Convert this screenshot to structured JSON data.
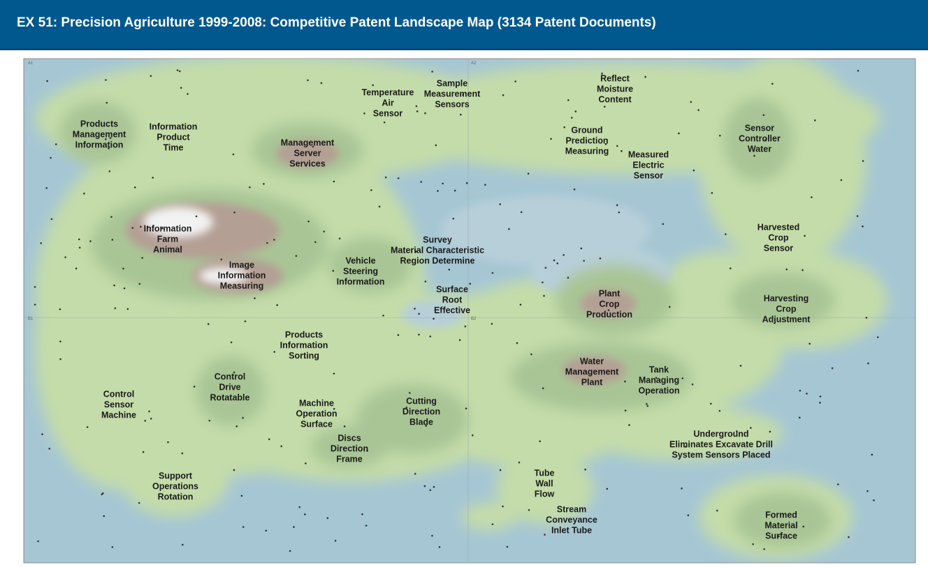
{
  "header": {
    "title": "EX 51: Precision Agriculture 1999-2008: Competitive Patent Landscape Map (3134 Patent Documents)"
  },
  "map": {
    "quadrants": [
      "A1",
      "A2",
      "B1",
      "B2"
    ],
    "clusters": [
      {
        "lines": [
          "Products",
          "Management",
          "Information"
        ]
      },
      {
        "lines": [
          "Information",
          "Product",
          "Time"
        ]
      },
      {
        "lines": [
          "Management",
          "Server",
          "Services"
        ]
      },
      {
        "lines": [
          "Temperature",
          "Air",
          "Sensor"
        ]
      },
      {
        "lines": [
          "Sample",
          "Measurement",
          "Sensors"
        ]
      },
      {
        "lines": [
          "Reflect",
          "Moisture",
          "Content"
        ]
      },
      {
        "lines": [
          "Ground",
          "Prediction",
          "Measuring"
        ]
      },
      {
        "lines": [
          "Measured",
          "Electric",
          "Sensor"
        ]
      },
      {
        "lines": [
          "Sensor",
          "Controller",
          "Water"
        ]
      },
      {
        "lines": [
          "Information",
          "Farm",
          "Animal"
        ]
      },
      {
        "lines": [
          "Image",
          "Information",
          "Measuring"
        ]
      },
      {
        "lines": [
          "Vehicle",
          "Steering",
          "Information"
        ]
      },
      {
        "lines": [
          "Survey",
          "Material Characteristic",
          "Region Determine"
        ]
      },
      {
        "lines": [
          "Surface",
          "Root",
          "Effective"
        ]
      },
      {
        "lines": [
          "Harvested",
          "Crop",
          "Sensor"
        ]
      },
      {
        "lines": [
          "Plant",
          "Crop",
          "Production"
        ]
      },
      {
        "lines": [
          "Harvesting",
          "Crop",
          "Adjustment"
        ]
      },
      {
        "lines": [
          "Products",
          "Information",
          "Sorting"
        ]
      },
      {
        "lines": [
          "Control",
          "Drive",
          "Rotatable"
        ]
      },
      {
        "lines": [
          "Control",
          "Sensor",
          "Machine"
        ]
      },
      {
        "lines": [
          "Machine",
          "Operation",
          "Surface"
        ]
      },
      {
        "lines": [
          "Cutting",
          "Direction",
          "Blade"
        ]
      },
      {
        "lines": [
          "Water",
          "Management",
          "Plant"
        ]
      },
      {
        "lines": [
          "Tank",
          "Managing",
          "Operation"
        ]
      },
      {
        "lines": [
          "Underground",
          "Eliminates Excavate Drill",
          "System Sensors Placed"
        ]
      },
      {
        "lines": [
          "Discs",
          "Direction",
          "Frame"
        ]
      },
      {
        "lines": [
          "Tube",
          "Wall",
          "Flow"
        ]
      },
      {
        "lines": [
          "Support",
          "Operations",
          "Rotation"
        ]
      },
      {
        "lines": [
          "Stream",
          "Conveyance",
          "Inlet Tube"
        ]
      },
      {
        "lines": [
          "Formed",
          "Material",
          "Surface"
        ]
      }
    ]
  }
}
